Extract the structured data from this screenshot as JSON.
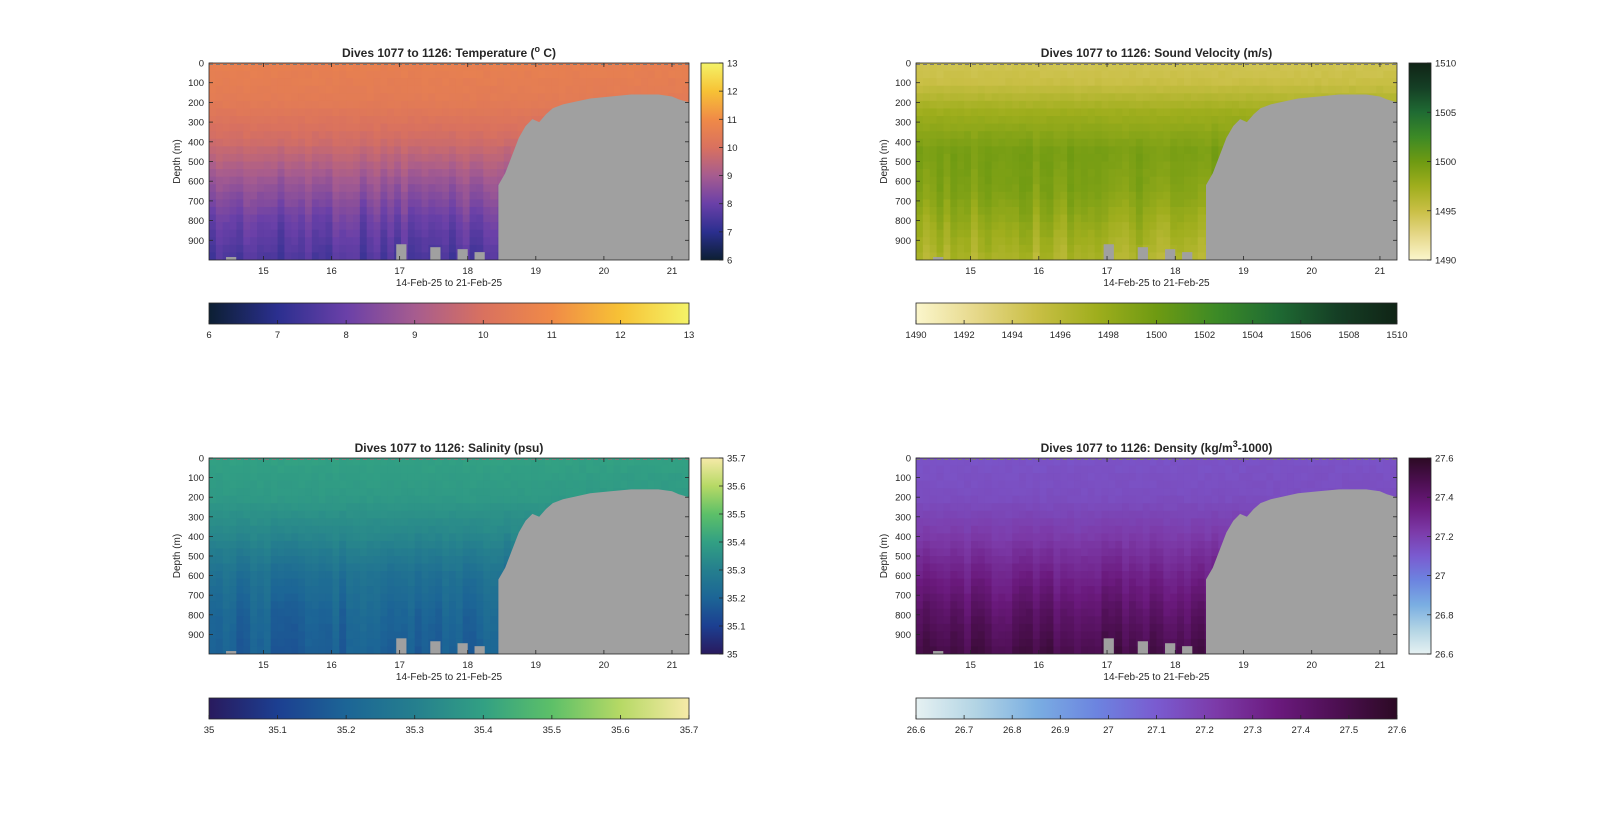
{
  "chart_data": [
    {
      "type": "heatmap",
      "title": "Dives 1077 to 1126: Temperature (",
      "title_sup": "o",
      "title_suffix": " C)",
      "xlabel": "14-Feb-25 to 21-Feb-25",
      "ylabel": "Depth (m)",
      "x_ticks": [
        "15",
        "16",
        "17",
        "18",
        "19",
        "20",
        "21"
      ],
      "y_ticks": [
        "0",
        "100",
        "200",
        "300",
        "400",
        "500",
        "600",
        "700",
        "800",
        "900"
      ],
      "xlim": [
        14.2,
        21.25
      ],
      "ylim": [
        0,
        1000
      ],
      "variable": "Temperature",
      "clim": [
        6,
        13
      ],
      "colorbar_ticks": [
        "6",
        "7",
        "8",
        "9",
        "10",
        "11",
        "12",
        "13"
      ],
      "horizontal_colorbar_ticks": [
        "6",
        "7",
        "8",
        "9",
        "10",
        "11",
        "12",
        "13"
      ],
      "colormap": [
        "#0c1f33",
        "#2b2f8f",
        "#6a40a8",
        "#a65c8f",
        "#d9715f",
        "#f08a47",
        "#f7c235",
        "#f4f368"
      ],
      "profile": [
        {
          "depth": 0,
          "value": 10.6
        },
        {
          "depth": 200,
          "value": 10.4
        },
        {
          "depth": 400,
          "value": 9.8
        },
        {
          "depth": 600,
          "value": 8.8
        },
        {
          "depth": 800,
          "value": 8.0
        },
        {
          "depth": 1000,
          "value": 7.5
        }
      ]
    },
    {
      "type": "heatmap",
      "title": "Dives 1077 to 1126: Sound Velocity (m/s)",
      "title_sup": "",
      "title_suffix": "",
      "xlabel": "14-Feb-25 to 21-Feb-25",
      "ylabel": "Depth (m)",
      "x_ticks": [
        "15",
        "16",
        "17",
        "18",
        "19",
        "20",
        "21"
      ],
      "y_ticks": [
        "0",
        "100",
        "200",
        "300",
        "400",
        "500",
        "600",
        "700",
        "800",
        "900"
      ],
      "xlim": [
        14.2,
        21.25
      ],
      "ylim": [
        0,
        1000
      ],
      "variable": "Sound Velocity",
      "clim": [
        1490,
        1510
      ],
      "colorbar_ticks": [
        "1490",
        "1495",
        "1500",
        "1505",
        "1510"
      ],
      "horizontal_colorbar_ticks": [
        "1490",
        "1492",
        "1494",
        "1496",
        "1498",
        "1500",
        "1502",
        "1504",
        "1506",
        "1508",
        "1510"
      ],
      "colormap": [
        "#fbf6cc",
        "#e6d88a",
        "#c9bf45",
        "#9fae1d",
        "#6e9a12",
        "#3c8a26",
        "#1f6b33",
        "#153f25",
        "#102416"
      ],
      "profile": [
        {
          "depth": 0,
          "value": 1494.5
        },
        {
          "depth": 100,
          "value": 1495.0
        },
        {
          "depth": 250,
          "value": 1497.5
        },
        {
          "depth": 450,
          "value": 1499.5
        },
        {
          "depth": 650,
          "value": 1499.0
        },
        {
          "depth": 850,
          "value": 1497.5
        },
        {
          "depth": 1000,
          "value": 1496.5
        }
      ]
    },
    {
      "type": "heatmap",
      "title": "Dives 1077 to 1126: Salinity (psu)",
      "title_sup": "",
      "title_suffix": "",
      "xlabel": "14-Feb-25 to 21-Feb-25",
      "ylabel": "Depth (m)",
      "x_ticks": [
        "15",
        "16",
        "17",
        "18",
        "19",
        "20",
        "21"
      ],
      "y_ticks": [
        "0",
        "100",
        "200",
        "300",
        "400",
        "500",
        "600",
        "700",
        "800",
        "900"
      ],
      "xlim": [
        14.2,
        21.25
      ],
      "ylim": [
        0,
        1000
      ],
      "variable": "Salinity",
      "clim": [
        35,
        35.7
      ],
      "colorbar_ticks": [
        "35",
        "35.1",
        "35.2",
        "35.3",
        "35.4",
        "35.5",
        "35.6",
        "35.7"
      ],
      "horizontal_colorbar_ticks": [
        "35",
        "35.1",
        "35.2",
        "35.3",
        "35.4",
        "35.5",
        "35.6",
        "35.7"
      ],
      "colormap": [
        "#291a5e",
        "#1c3f91",
        "#1c6596",
        "#257f8e",
        "#32a083",
        "#5dc068",
        "#b6d965",
        "#f6eaa8"
      ],
      "profile": [
        {
          "depth": 0,
          "value": 35.4
        },
        {
          "depth": 200,
          "value": 35.38
        },
        {
          "depth": 400,
          "value": 35.32
        },
        {
          "depth": 600,
          "value": 35.24
        },
        {
          "depth": 800,
          "value": 35.2
        },
        {
          "depth": 1000,
          "value": 35.18
        }
      ]
    },
    {
      "type": "heatmap",
      "title": "Dives 1077 to 1126: Density (kg/m",
      "title_sup": "3",
      "title_suffix": "-1000)",
      "xlabel": "14-Feb-25 to 21-Feb-25",
      "ylabel": "Depth (m)",
      "x_ticks": [
        "15",
        "16",
        "17",
        "18",
        "19",
        "20",
        "21"
      ],
      "y_ticks": [
        "0",
        "100",
        "200",
        "300",
        "400",
        "500",
        "600",
        "700",
        "800",
        "900"
      ],
      "xlim": [
        14.2,
        21.25
      ],
      "ylim": [
        0,
        1000
      ],
      "variable": "Density",
      "clim": [
        26.6,
        27.6
      ],
      "colorbar_ticks": [
        "26.6",
        "26.8",
        "27",
        "27.2",
        "27.4",
        "27.6"
      ],
      "horizontal_colorbar_ticks": [
        "26.6",
        "26.7",
        "26.8",
        "26.9",
        "27",
        "27.1",
        "27.2",
        "27.3",
        "27.4",
        "27.5",
        "27.6"
      ],
      "colormap": [
        "#e6f1f2",
        "#b2d4e4",
        "#7aaee2",
        "#6c84e0",
        "#7a5bd0",
        "#7c3aa8",
        "#6b1a7e",
        "#4d0f52",
        "#2c0a24"
      ],
      "profile": [
        {
          "depth": 0,
          "value": 27.13
        },
        {
          "depth": 200,
          "value": 27.15
        },
        {
          "depth": 400,
          "value": 27.22
        },
        {
          "depth": 600,
          "value": 27.32
        },
        {
          "depth": 800,
          "value": 27.42
        },
        {
          "depth": 1000,
          "value": 27.5
        }
      ]
    }
  ],
  "colors": {
    "no_data": "#a0a0a0",
    "axis": "#262626"
  },
  "no_data_boundary": [
    {
      "x": 18.45,
      "depth": 1000
    },
    {
      "x": 18.45,
      "depth": 620
    },
    {
      "x": 18.55,
      "depth": 560
    },
    {
      "x": 18.65,
      "depth": 470
    },
    {
      "x": 18.75,
      "depth": 380
    },
    {
      "x": 18.85,
      "depth": 320
    },
    {
      "x": 18.95,
      "depth": 285
    },
    {
      "x": 19.05,
      "depth": 300
    },
    {
      "x": 19.15,
      "depth": 260
    },
    {
      "x": 19.25,
      "depth": 230
    },
    {
      "x": 19.4,
      "depth": 210
    },
    {
      "x": 19.6,
      "depth": 195
    },
    {
      "x": 19.8,
      "depth": 180
    },
    {
      "x": 20.1,
      "depth": 170
    },
    {
      "x": 20.4,
      "depth": 160
    },
    {
      "x": 20.8,
      "depth": 160
    },
    {
      "x": 21.0,
      "depth": 170
    },
    {
      "x": 21.1,
      "depth": 185
    },
    {
      "x": 21.25,
      "depth": 200
    }
  ],
  "bottom_gaps": [
    {
      "x": 14.45,
      "width": 0.15,
      "depth": 985
    },
    {
      "x": 16.95,
      "width": 0.15,
      "depth": 920
    },
    {
      "x": 17.45,
      "width": 0.15,
      "depth": 935
    },
    {
      "x": 17.85,
      "width": 0.15,
      "depth": 945
    },
    {
      "x": 18.1,
      "width": 0.15,
      "depth": 960
    }
  ]
}
